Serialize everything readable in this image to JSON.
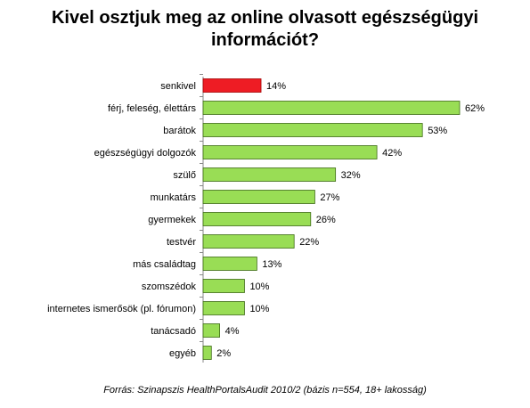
{
  "title": {
    "line1": "Kivel osztjuk meg az online olvasott egészségügyi",
    "line2": "információt?"
  },
  "source": "Forrás: Szinapszis HealthPortalsAudit 2010/2 (bázis n=554, 18+ lakosság)",
  "colors": {
    "highlight": "#ee1c24",
    "bar": "#99dd55",
    "bar_stroke": "#3d6b14",
    "axis": "#888888"
  },
  "chart_data": {
    "type": "bar",
    "orientation": "horizontal",
    "categories": [
      "senkivel",
      "férj, feleség, élettárs",
      "barátok",
      "egészségügyi dolgozók",
      "szülő",
      "munkatárs",
      "gyermekek",
      "testvér",
      "más családtag",
      "szomszédok",
      "internetes ismerősök (pl. fórumon)",
      "tanácsadó",
      "egyéb"
    ],
    "values": [
      14,
      62,
      53,
      42,
      32,
      27,
      26,
      22,
      13,
      10,
      10,
      4,
      2
    ],
    "labels": [
      "14%",
      "62%",
      "53%",
      "42%",
      "32%",
      "27%",
      "26%",
      "22%",
      "13%",
      "10%",
      "10%",
      "4%",
      "2%"
    ],
    "unit": "%",
    "highlight_index": 0,
    "xlim": [
      0,
      62
    ],
    "grid": false
  }
}
